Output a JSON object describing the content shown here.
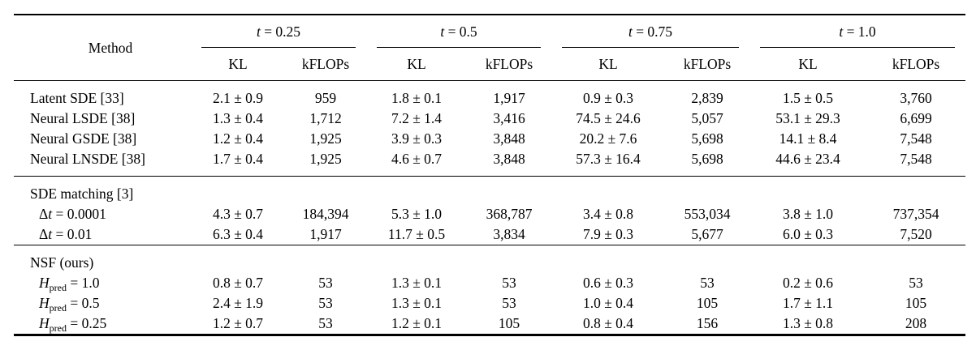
{
  "page": {
    "background": "#ffffff",
    "text_color": "#000000",
    "rule_color": "#000000"
  },
  "table": {
    "header": {
      "method_label": "Method",
      "kl_label": "KL",
      "kflops_label": "kFLOPs",
      "groups": [
        {
          "var": "t",
          "eq": " = 0.25"
        },
        {
          "var": "t",
          "eq": " = 0.5"
        },
        {
          "var": "t",
          "eq": " = 0.75"
        },
        {
          "var": "t",
          "eq": " = 1.0"
        }
      ]
    },
    "sections": [
      {
        "header_label": "",
        "rows": [
          {
            "label": {
              "pre": "Latent SDE [33]",
              "it": "",
              "sub": "",
              "rest": ""
            },
            "indent": false,
            "values": [
              "2.1 ± 0.9",
              "959",
              "1.8 ± 0.1",
              "1,917",
              "0.9 ± 0.3",
              "2,839",
              "1.5 ± 0.5",
              "3,760"
            ]
          },
          {
            "label": {
              "pre": "Neural LSDE [38]",
              "it": "",
              "sub": "",
              "rest": ""
            },
            "indent": false,
            "values": [
              "1.3 ± 0.4",
              "1,712",
              "7.2 ± 1.4",
              "3,416",
              "74.5 ± 24.6",
              "5,057",
              "53.1 ± 29.3",
              "6,699"
            ]
          },
          {
            "label": {
              "pre": "Neural GSDE [38]",
              "it": "",
              "sub": "",
              "rest": ""
            },
            "indent": false,
            "values": [
              "1.2 ± 0.4",
              "1,925",
              "3.9 ± 0.3",
              "3,848",
              "20.2 ± 7.6",
              "5,698",
              "14.1 ± 8.4",
              "7,548"
            ]
          },
          {
            "label": {
              "pre": "Neural LNSDE [38]",
              "it": "",
              "sub": "",
              "rest": ""
            },
            "indent": false,
            "values": [
              "1.7 ± 0.4",
              "1,925",
              "4.6 ± 0.7",
              "3,848",
              "57.3 ± 16.4",
              "5,698",
              "44.6 ± 23.4",
              "7,548"
            ]
          }
        ]
      },
      {
        "header_label": "SDE matching [3]",
        "rows": [
          {
            "label": {
              "pre": "Δ",
              "it": "t",
              "sub": "",
              "rest": " = 0.0001"
            },
            "indent": true,
            "values": [
              "4.3 ± 0.7",
              "184,394",
              "5.3 ± 1.0",
              "368,787",
              "3.4 ± 0.8",
              "553,034",
              "3.8 ± 1.0",
              "737,354"
            ]
          },
          {
            "label": {
              "pre": "Δ",
              "it": "t",
              "sub": "",
              "rest": " = 0.01"
            },
            "indent": true,
            "values": [
              "6.3 ± 0.4",
              "1,917",
              "11.7 ± 0.5",
              "3,834",
              "7.9 ± 0.3",
              "5,677",
              "6.0 ± 0.3",
              "7,520"
            ]
          }
        ]
      },
      {
        "header_label": "NSF (ours)",
        "rows": [
          {
            "label": {
              "pre": "",
              "it": "H",
              "sub": "pred",
              "rest": " = 1.0"
            },
            "indent": true,
            "values": [
              "0.8 ± 0.7",
              "53",
              "1.3 ± 0.1",
              "53",
              "0.6 ± 0.3",
              "53",
              "0.2 ± 0.6",
              "53"
            ]
          },
          {
            "label": {
              "pre": "",
              "it": "H",
              "sub": "pred",
              "rest": " = 0.5"
            },
            "indent": true,
            "values": [
              "2.4 ± 1.9",
              "53",
              "1.3 ± 0.1",
              "53",
              "1.0 ± 0.4",
              "105",
              "1.7 ± 1.1",
              "105"
            ]
          },
          {
            "label": {
              "pre": "",
              "it": "H",
              "sub": "pred",
              "rest": " = 0.25"
            },
            "indent": true,
            "values": [
              "1.2 ± 0.7",
              "53",
              "1.2 ± 0.1",
              "105",
              "0.8 ± 0.4",
              "156",
              "1.3 ± 0.8",
              "208"
            ]
          }
        ]
      }
    ]
  }
}
